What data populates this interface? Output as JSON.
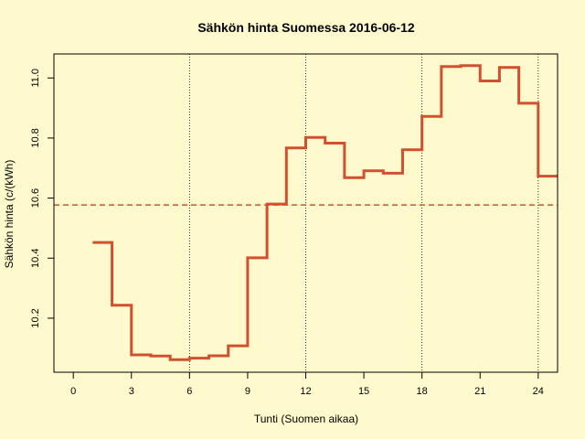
{
  "chart_data": {
    "type": "line",
    "step": true,
    "title": "Sähkön hinta Suomessa 2016-06-12",
    "xlabel": "Tunti (Suomen aikaa)",
    "ylabel": "Sähkön hinta (c/(kWh)",
    "xlim": [
      -1,
      25
    ],
    "ylim": [
      10.02,
      11.08
    ],
    "x_ticks": [
      0,
      3,
      6,
      9,
      12,
      15,
      18,
      21,
      24
    ],
    "y_ticks": [
      10.2,
      10.4,
      10.6,
      10.8,
      11.0
    ],
    "y_tick_labels": [
      "10.2",
      "10.4",
      "10.6",
      "10.8",
      "11.0"
    ],
    "vertical_dotted_lines_at": [
      6,
      12,
      18,
      24
    ],
    "mean_line": {
      "value": 10.577,
      "style": "dashed"
    },
    "series": [
      {
        "x": [
          1,
          2,
          3,
          4,
          5,
          6,
          7,
          8,
          9,
          10,
          11,
          12,
          13,
          14,
          15,
          16,
          17,
          18,
          19,
          20,
          21,
          22,
          23,
          24
        ],
        "values": [
          10.452,
          10.243,
          10.078,
          10.074,
          10.062,
          10.067,
          10.075,
          10.108,
          10.401,
          10.58,
          10.767,
          10.802,
          10.783,
          10.668,
          10.691,
          10.683,
          10.761,
          10.872,
          11.038,
          11.041,
          10.99,
          11.035,
          10.916,
          10.673
        ]
      }
    ],
    "colors": {
      "series": "#D05030",
      "mean_line": "#D05030",
      "background": "#FFFACD",
      "axes": "#000000"
    }
  }
}
